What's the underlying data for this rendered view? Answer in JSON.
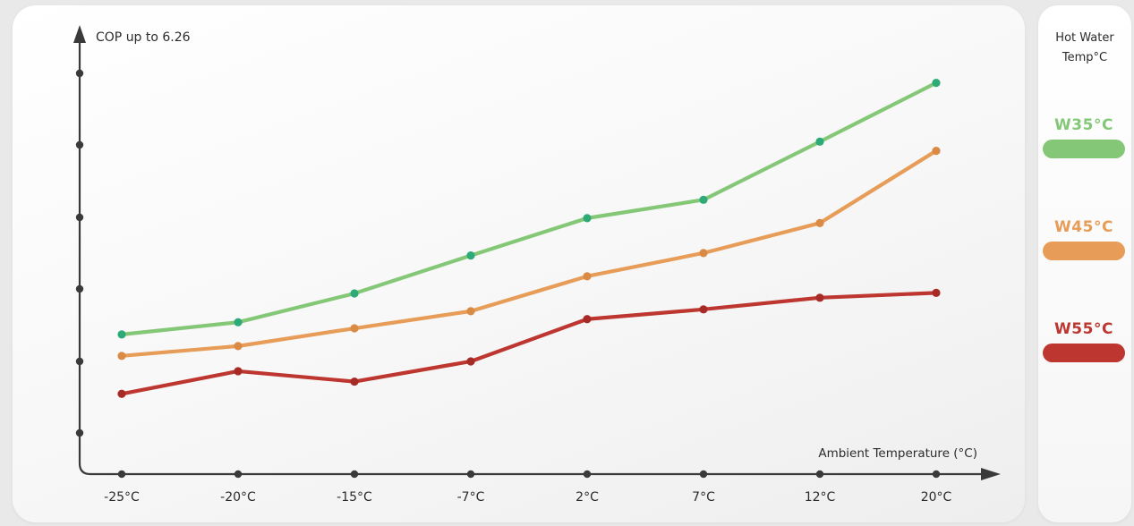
{
  "chart_data": {
    "type": "line",
    "ylabel": "COP up to 6.26",
    "xlabel": "Ambient Temperature (°C)",
    "categories": [
      "-25°C",
      "-20°C",
      "-15°C",
      "-7°C",
      "2°C",
      "7°C",
      "12°C",
      "20°C"
    ],
    "ylim": [
      0,
      7
    ],
    "y_ticks": [
      1,
      2,
      3,
      4,
      5,
      6
    ],
    "y_tick_labels_shown": false,
    "grid": false,
    "legend_placement": "right",
    "series": [
      {
        "name": "W35°C",
        "color": "#84c877",
        "marker_color": "#2eaa78",
        "values": [
          2.15,
          2.35,
          2.82,
          3.44,
          4.05,
          4.35,
          5.3,
          6.26
        ]
      },
      {
        "name": "W45°C",
        "color": "#e79c57",
        "marker_color": "#d98a45",
        "values": [
          1.8,
          1.96,
          2.25,
          2.53,
          3.1,
          3.48,
          3.97,
          5.15
        ]
      },
      {
        "name": "W55°C",
        "color": "#bd3630",
        "marker_color": "#a62b27",
        "values": [
          1.18,
          1.55,
          1.38,
          1.71,
          2.4,
          2.56,
          2.75,
          2.83
        ]
      }
    ]
  },
  "legend": {
    "title_line1": "Hot Water",
    "title_line2": "Temp°C"
  },
  "colors": {
    "axis": "#3a3a3a",
    "text": "#2b2b2b"
  }
}
